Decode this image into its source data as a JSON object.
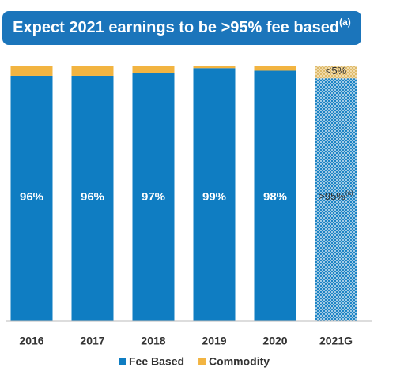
{
  "chart_data": {
    "type": "stacked_bar",
    "title": "Expect 2021 earnings to be >95% fee based",
    "footnote_mark": "(a)",
    "categories": [
      "2016",
      "2017",
      "2018",
      "2019",
      "2020",
      "2021G"
    ],
    "hatched": [
      false,
      false,
      false,
      false,
      false,
      true
    ],
    "ylim": [
      0,
      100
    ],
    "legend": "bottom",
    "series": [
      {
        "name": "Fee Based",
        "color": "#0f7dc2",
        "values": [
          96,
          96,
          97,
          99,
          98,
          95
        ],
        "value_labels": [
          "96%",
          "96%",
          "97%",
          "99%",
          "98%",
          ">95%"
        ]
      },
      {
        "name": "Commodity",
        "color": "#f2b441",
        "values": [
          4,
          4,
          3,
          1,
          2,
          5
        ],
        "value_labels": [
          null,
          null,
          null,
          null,
          null,
          "<5%"
        ]
      }
    ]
  }
}
